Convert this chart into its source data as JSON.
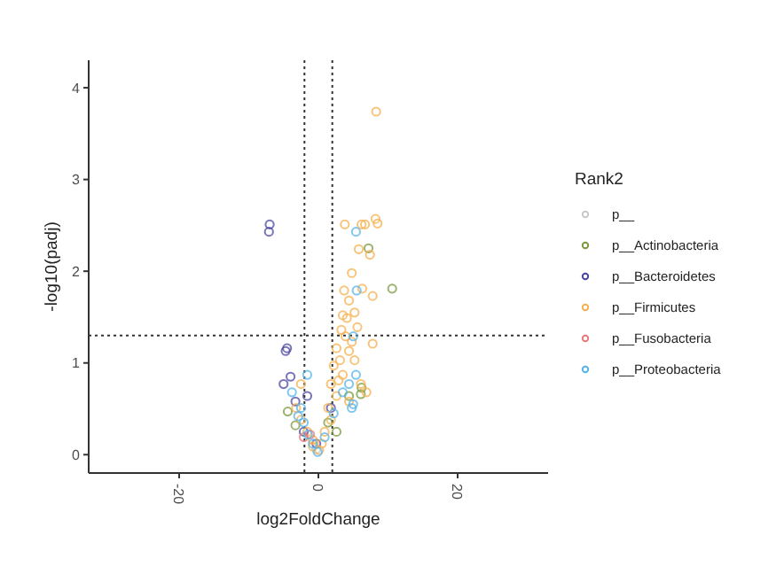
{
  "chart_data": {
    "type": "scatter",
    "xlabel": "log2FoldChange",
    "ylabel": "-log10(padj)",
    "legend_title": "Rank2",
    "legend": "right",
    "marker": "circle",
    "grid": false,
    "xlim": [
      -33,
      33
    ],
    "ylim": [
      -0.2,
      4.3
    ],
    "xticks": [
      -20,
      0,
      20
    ],
    "yticks": [
      0,
      1,
      2,
      3,
      4
    ],
    "ref_lines": [
      {
        "axis": "x",
        "value": -2,
        "line_style": "dotted",
        "color": "#333333"
      },
      {
        "axis": "x",
        "value": 2,
        "line_style": "dotted",
        "color": "#333333"
      },
      {
        "axis": "y",
        "value": 1.3,
        "line_style": "dotted",
        "color": "#333333"
      }
    ],
    "series": [
      {
        "name": "p__",
        "color": "#c8c8c8",
        "x": [
          -0.3
        ],
        "values": [
          0.06
        ]
      },
      {
        "name": "p__Actinobacteria",
        "color": "#7a9a3c",
        "x": [
          10.6,
          7.2,
          6.2,
          -4.4,
          -3.3,
          2.6,
          4.4,
          6.1,
          1.4
        ],
        "values": [
          1.81,
          2.25,
          0.73,
          0.47,
          0.32,
          0.25,
          0.64,
          0.66,
          0.35
        ]
      },
      {
        "name": "p__Bacteroidetes",
        "color": "#4b45a0",
        "x": [
          -7.0,
          -7.1,
          -4.5,
          -4.7,
          -5.0,
          -4.0,
          -3.3,
          -2.1,
          -1.6,
          -0.3,
          1.8
        ],
        "values": [
          2.51,
          2.43,
          1.16,
          1.13,
          0.77,
          0.85,
          0.58,
          0.25,
          0.64,
          0.12,
          0.51
        ]
      },
      {
        "name": "p__Firmicutes",
        "color": "#f5b04f",
        "x": [
          8.3,
          8.2,
          8.5,
          3.8,
          6.2,
          6.7,
          5.8,
          7.4,
          4.8,
          3.7,
          6.3,
          7.8,
          4.4,
          5.2,
          3.5,
          4.1,
          5.6,
          3.3,
          7.8,
          2.6,
          4.4,
          5.2,
          2.2,
          3.5,
          6.1,
          1.8,
          2.6,
          4.4,
          1.4,
          1.8,
          0.9,
          0.5,
          0.1,
          -0.8,
          -1.6,
          -2.5,
          -3.2,
          -2.5,
          -0.8,
          6.9,
          3.1,
          3.9,
          4.8,
          2.9
        ],
        "values": [
          3.74,
          2.57,
          2.52,
          2.51,
          2.51,
          2.51,
          2.24,
          2.18,
          1.98,
          1.79,
          1.81,
          1.73,
          1.68,
          1.55,
          1.52,
          1.49,
          1.39,
          1.36,
          1.21,
          1.16,
          1.13,
          1.03,
          0.97,
          0.87,
          0.77,
          0.77,
          0.64,
          0.58,
          0.51,
          0.38,
          0.25,
          0.12,
          0.05,
          0.09,
          0.25,
          0.38,
          0.51,
          0.77,
          0.16,
          0.68,
          1.03,
          1.29,
          1.23,
          0.81
        ]
      },
      {
        "name": "p__Fusobacteria",
        "color": "#e8787a",
        "x": [
          -2.1,
          -1.2
        ],
        "values": [
          0.19,
          0.22
        ]
      },
      {
        "name": "p__Proteobacteria",
        "color": "#56b4e9",
        "x": [
          5.4,
          5.5,
          5.0,
          -1.6,
          -3.8,
          -2.5,
          -2.9,
          -2.1,
          -1.5,
          -0.8,
          -0.1,
          0.9,
          2.2,
          3.5,
          4.8,
          5.4,
          5.0,
          4.4
        ],
        "values": [
          2.43,
          1.79,
          1.29,
          0.87,
          0.68,
          0.51,
          0.42,
          0.35,
          0.22,
          0.12,
          0.03,
          0.19,
          0.45,
          0.68,
          0.51,
          0.87,
          0.55,
          0.77
        ]
      }
    ]
  }
}
